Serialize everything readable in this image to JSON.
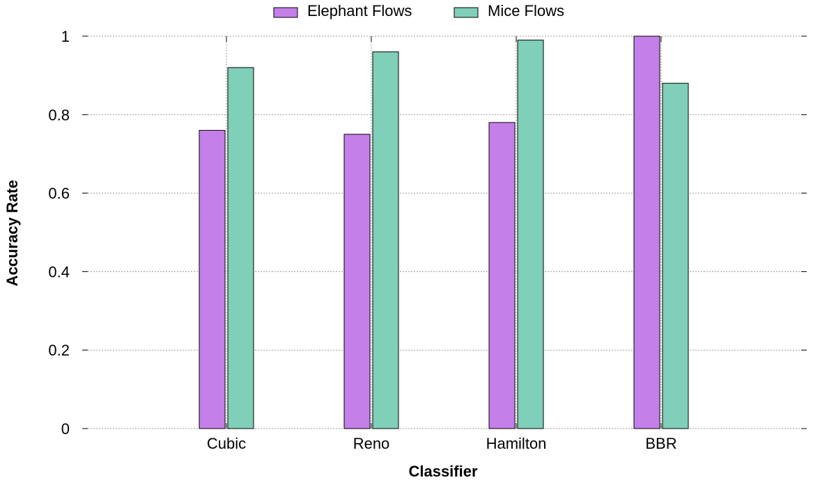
{
  "chart_data": {
    "type": "bar",
    "categories": [
      "Cubic",
      "Reno",
      "Hamilton",
      "BBR"
    ],
    "series": [
      {
        "name": "Elephant Flows",
        "values": [
          0.76,
          0.75,
          0.78,
          1.0
        ],
        "color": "#c57fe8"
      },
      {
        "name": "Mice Flows",
        "values": [
          0.92,
          0.96,
          0.99,
          0.88
        ],
        "color": "#80cfb8"
      }
    ],
    "xlabel": "Classifier",
    "ylabel": "Accuracy Rate",
    "ylim": [
      0,
      1
    ],
    "yticks": [
      0,
      0.2,
      0.4,
      0.6,
      0.8,
      1
    ],
    "ytick_labels": [
      "0",
      "0.2",
      "0.4",
      "0.6",
      "0.8",
      "1"
    ],
    "grid": true,
    "legend_position": "top-center"
  }
}
